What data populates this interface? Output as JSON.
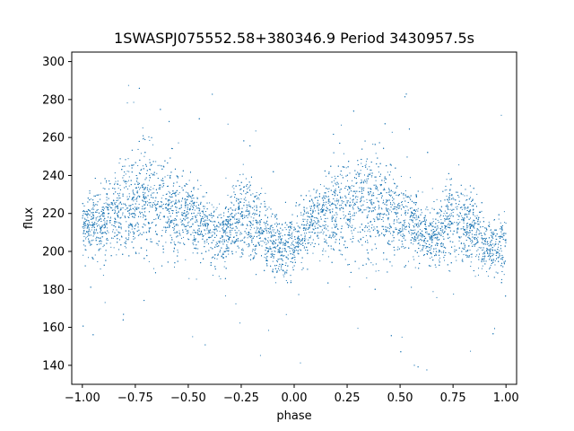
{
  "chart_data": {
    "type": "scatter",
    "title": "1SWASPJ075552.58+380346.9 Period 3430957.5s",
    "xlabel": "phase",
    "ylabel": "flux",
    "xlim": [
      -1.05,
      1.05
    ],
    "ylim": [
      130,
      305
    ],
    "xticks": [
      -1.0,
      -0.75,
      -0.5,
      -0.25,
      0.0,
      0.25,
      0.5,
      0.75,
      1.0
    ],
    "xtick_labels": [
      "−1.00",
      "−0.75",
      "−0.50",
      "−0.25",
      "0.00",
      "0.25",
      "0.50",
      "0.75",
      "1.00"
    ],
    "yticks": [
      140,
      160,
      180,
      200,
      220,
      240,
      260,
      280,
      300
    ],
    "ytick_labels": [
      "140",
      "160",
      "180",
      "200",
      "220",
      "240",
      "260",
      "280",
      "300"
    ],
    "grid": false,
    "point_color": "#1f77b4",
    "series_profile": {
      "phase": [
        -1.0,
        -0.95,
        -0.9,
        -0.85,
        -0.8,
        -0.75,
        -0.7,
        -0.65,
        -0.6,
        -0.55,
        -0.5,
        -0.45,
        -0.4,
        -0.35,
        -0.3,
        -0.25,
        -0.2,
        -0.15,
        -0.1,
        -0.05,
        0.0,
        0.05,
        0.1,
        0.15,
        0.2,
        0.25,
        0.3,
        0.35,
        0.4,
        0.45,
        0.5,
        0.55,
        0.6,
        0.65,
        0.7,
        0.75,
        0.8,
        0.85,
        0.9,
        0.95,
        1.0
      ],
      "flux_center": [
        212,
        214,
        216,
        220,
        222,
        225,
        228,
        226,
        224,
        220,
        218,
        215,
        210,
        207,
        212,
        218,
        215,
        210,
        205,
        200,
        205,
        212,
        216,
        220,
        222,
        225,
        228,
        226,
        224,
        220,
        218,
        215,
        210,
        207,
        212,
        218,
        215,
        210,
        205,
        200,
        205
      ],
      "flux_spread": [
        12,
        12,
        14,
        16,
        18,
        20,
        22,
        22,
        20,
        18,
        16,
        14,
        13,
        13,
        14,
        16,
        15,
        14,
        13,
        12,
        12,
        12,
        14,
        16,
        18,
        20,
        22,
        22,
        20,
        18,
        16,
        14,
        13,
        13,
        14,
        16,
        15,
        14,
        13,
        12,
        12
      ]
    },
    "n_points": 9000
  }
}
